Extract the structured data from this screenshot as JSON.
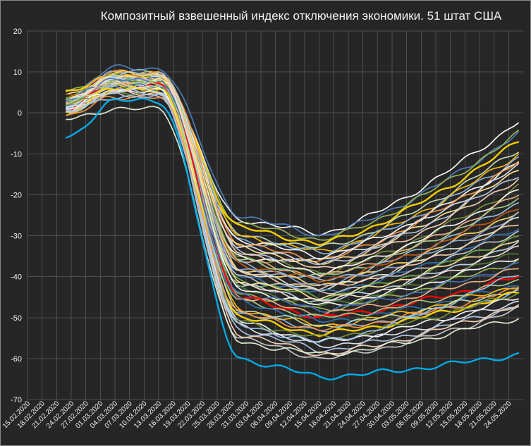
{
  "chart_data": {
    "type": "line",
    "title": "Композитный взвешенный индекс отключения экономики. 51 штат США",
    "xlabel": "",
    "ylabel": "",
    "ylim": [
      -70,
      20
    ],
    "yticks": [
      20,
      10,
      0,
      -10,
      -20,
      -30,
      -40,
      -50,
      -60,
      -70
    ],
    "x_tick_labels": [
      "15.02.2020",
      "18.02.2020",
      "21.02.2020",
      "24.02.2020",
      "27.02.2020",
      "01.03.2020",
      "04.03.2020",
      "07.03.2020",
      "10.03.2020",
      "13.03.2020",
      "16.03.2020",
      "19.03.2020",
      "22.03.2020",
      "25.03.2020",
      "28.03.2020",
      "31.03.2020",
      "03.04.2020",
      "06.04.2020",
      "09.04.2020",
      "12.04.2020",
      "15.04.2020",
      "18.04.2020",
      "21.04.2020",
      "24.04.2020",
      "27.04.2020",
      "30.04.2020",
      "03.05.2020",
      "06.05.2020",
      "09.05.2020",
      "12.05.2020",
      "15.05.2020",
      "18.05.2020",
      "21.05.2020",
      "24.05.2020"
    ],
    "grid": true,
    "legend": "none",
    "series_shape": {
      "start_date": "23.02.2020",
      "end_date": "26.05.2020",
      "pre_peak_date": "04.03.2020",
      "decline_start": "13.03.2020",
      "decline_end": "30.03.2020",
      "trough_date": "15.04.2020"
    },
    "series": [
      {
        "color": "#ffffff",
        "start": 3,
        "peak": 7.5,
        "drop": -26,
        "trough": -29.5,
        "end": -2
      },
      {
        "color": "#4f81bd",
        "start": 4,
        "peak": 11,
        "drop": -25,
        "trough": -30,
        "end": -5
      },
      {
        "color": "#9bbb59",
        "start": 5.5,
        "peak": 8,
        "drop": -27,
        "trough": -31,
        "end": -5
      },
      {
        "color": "#ffd700",
        "start": 5,
        "peak": 9,
        "drop": -28,
        "trough": -32,
        "end": -7
      },
      {
        "color": "#c6e0b4",
        "start": 2,
        "peak": 8.5,
        "drop": -30,
        "trough": -33,
        "end": -9
      },
      {
        "color": "#ffc000",
        "start": 3.5,
        "peak": 9.5,
        "drop": -30,
        "trough": -34,
        "end": -10
      },
      {
        "color": "#8eb4e3",
        "start": 3,
        "peak": 10,
        "drop": -31,
        "trough": -34,
        "end": -11
      },
      {
        "color": "#ffffff",
        "start": 2,
        "peak": 8,
        "drop": -31,
        "trough": -35,
        "end": -12
      },
      {
        "color": "#f79646",
        "start": 3,
        "peak": 10,
        "drop": -32,
        "trough": -36,
        "end": -12
      },
      {
        "color": "#dce6f2",
        "start": 1.5,
        "peak": 9,
        "drop": -33,
        "trough": -36,
        "end": -13
      },
      {
        "color": "#ffe699",
        "start": 4,
        "peak": 9,
        "drop": -33,
        "trough": -37,
        "end": -14
      },
      {
        "color": "#b4c7e7",
        "start": 2.5,
        "peak": 9.5,
        "drop": -34,
        "trough": -37,
        "end": -15
      },
      {
        "color": "#fbd5b5",
        "start": 3,
        "peak": 8,
        "drop": -34,
        "trough": -38,
        "end": -16
      },
      {
        "color": "#77933c",
        "start": 4,
        "peak": 9,
        "drop": -35,
        "trough": -39,
        "end": -18
      },
      {
        "color": "#ffffff",
        "start": 1,
        "peak": 7,
        "drop": -35,
        "trough": -39,
        "end": -19
      },
      {
        "color": "#f4b183",
        "start": 2,
        "peak": 8,
        "drop": -36,
        "trough": -40,
        "end": -20
      },
      {
        "color": "#a9d18e",
        "start": 3,
        "peak": 9,
        "drop": -36,
        "trough": -40,
        "end": -21
      },
      {
        "color": "#9dc3e6",
        "start": 2.5,
        "peak": 9,
        "drop": -37,
        "trough": -41,
        "end": -22
      },
      {
        "color": "#c55a11",
        "start": 4,
        "peak": 8.5,
        "drop": -37,
        "trough": -41,
        "end": -23
      },
      {
        "color": "#ffd966",
        "start": 2,
        "peak": 9.5,
        "drop": -38,
        "trough": -42,
        "end": -24
      },
      {
        "color": "#8faadc",
        "start": 1.5,
        "peak": 8,
        "drop": -38,
        "trough": -42,
        "end": -25
      },
      {
        "color": "#e2f0d9",
        "start": 3,
        "peak": 8.5,
        "drop": -39,
        "trough": -43,
        "end": -26
      },
      {
        "color": "#f8cbad",
        "start": 2.5,
        "peak": 9,
        "drop": -39,
        "trough": -43,
        "end": -27
      },
      {
        "color": "#2e75b6",
        "start": 3.5,
        "peak": 8,
        "drop": -40,
        "trough": -44,
        "end": -28
      },
      {
        "color": "#c9c9c9",
        "start": 2,
        "peak": 7.5,
        "drop": -40,
        "trough": -44,
        "end": -29
      },
      {
        "color": "#70ad47",
        "start": 3,
        "peak": 8,
        "drop": -41,
        "trough": -45,
        "end": -30
      },
      {
        "color": "#ffe699",
        "start": 1,
        "peak": 8.5,
        "drop": -41,
        "trough": -45,
        "end": -31
      },
      {
        "color": "#bdd7ee",
        "start": 2.5,
        "peak": 8,
        "drop": -42,
        "trough": -46,
        "end": -32
      },
      {
        "color": "#fbe5d6",
        "start": 3,
        "peak": 8,
        "drop": -42,
        "trough": -46,
        "end": -33
      },
      {
        "color": "#548235",
        "start": 2,
        "peak": 7.5,
        "drop": -43,
        "trough": -47,
        "end": -34
      },
      {
        "color": "#ffffff",
        "start": 1.5,
        "peak": 7,
        "drop": -43,
        "trough": -47,
        "end": -35
      },
      {
        "color": "#9bbb59",
        "start": 2,
        "peak": 7.5,
        "drop": -44,
        "trough": -48,
        "end": -36
      },
      {
        "color": "#4472c4",
        "start": 3,
        "peak": 8,
        "drop": -44,
        "trough": -48,
        "end": -37
      },
      {
        "color": "#f4b183",
        "start": 2.5,
        "peak": 7,
        "drop": -45,
        "trough": -49,
        "end": -38
      },
      {
        "color": "#ff0000",
        "start": 1,
        "peak": 7,
        "drop": -45,
        "trough": -50,
        "end": -40
      },
      {
        "color": "#a9d18e",
        "start": 2,
        "peak": 7,
        "drop": -46,
        "trough": -50,
        "end": -41
      },
      {
        "color": "#2e75b6",
        "start": 1,
        "peak": 6.5,
        "drop": -46,
        "trough": -51,
        "end": -42
      },
      {
        "color": "#ffc000",
        "start": 0,
        "peak": 6,
        "drop": -48,
        "trough": -52,
        "end": -42
      },
      {
        "color": "#c6e0b4",
        "start": 2,
        "peak": 6.5,
        "drop": -48,
        "trough": -52,
        "end": -43
      },
      {
        "color": "#8eb4e3",
        "start": 1.5,
        "peak": 6,
        "drop": -49,
        "trough": -53,
        "end": -44
      },
      {
        "color": "#ffd700",
        "start": 0,
        "peak": 6,
        "drop": -50,
        "trough": -54,
        "end": -44
      },
      {
        "color": "#ffffff",
        "start": 1,
        "peak": 5.5,
        "drop": -51,
        "trough": -56,
        "end": -45
      },
      {
        "color": "#77933c",
        "start": 2,
        "peak": 5,
        "drop": -51,
        "trough": -55,
        "end": -44
      },
      {
        "color": "#dce6f2",
        "start": 1,
        "peak": 5.5,
        "drop": -52,
        "trough": -57,
        "end": -46
      },
      {
        "color": "#b4c7e7",
        "start": 0.5,
        "peak": 5,
        "drop": -53,
        "trough": -58,
        "end": -47
      },
      {
        "color": "#fbd5b5",
        "start": 1,
        "peak": 5,
        "drop": -54,
        "trough": -59,
        "end": -47
      },
      {
        "color": "#c9c9c9",
        "start": 0,
        "peak": 4.5,
        "drop": -55,
        "trough": -60,
        "end": -48
      },
      {
        "color": "#f79646",
        "start": -1,
        "peak": 4,
        "drop": -49,
        "trough": -53,
        "end": -43
      },
      {
        "color": "#9dc3e6",
        "start": 0,
        "peak": 4,
        "drop": -52,
        "trough": -56,
        "end": -39
      },
      {
        "color": "#e2f0d9",
        "start": -1.5,
        "peak": 1,
        "drop": -56,
        "trough": -59,
        "end": -50
      },
      {
        "color": "#00b0f0",
        "start": -6,
        "peak": 3,
        "drop": -60,
        "trough": -64.5,
        "end": -59
      }
    ]
  }
}
